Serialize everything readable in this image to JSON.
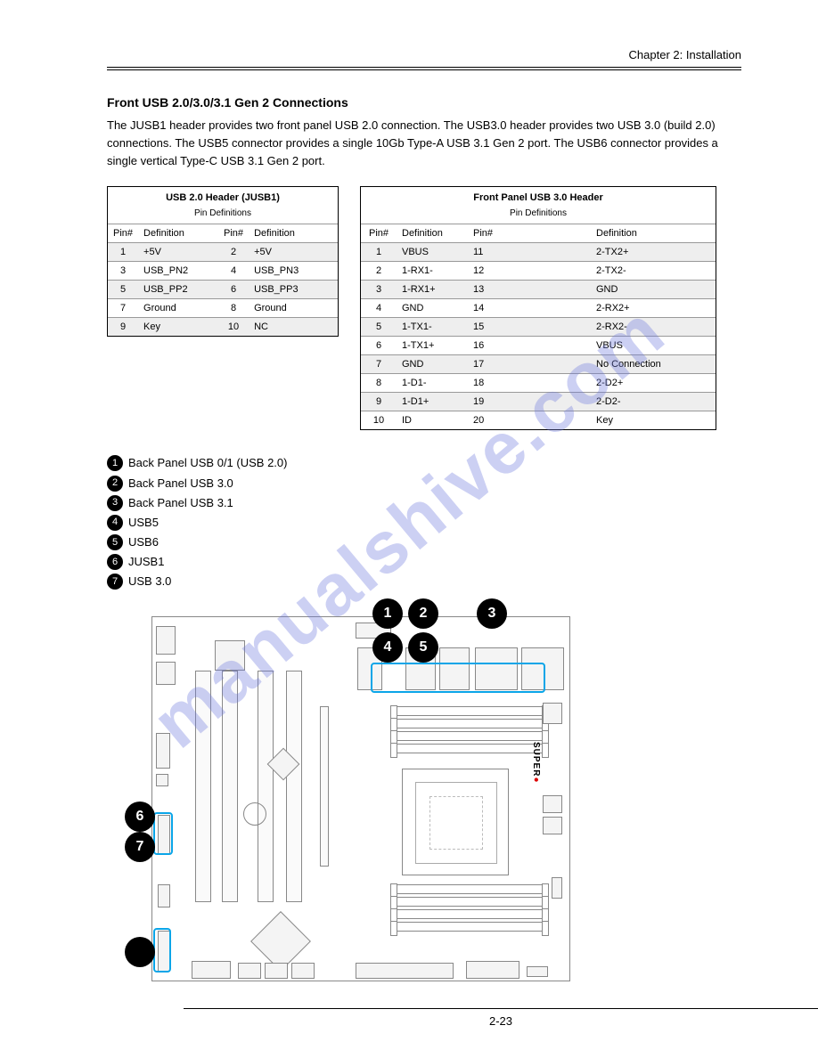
{
  "chapter_label": "Chapter 2: Installation",
  "section_title": "Front USB 2.0/3.0/3.1 Gen 2 Connections",
  "body_text": "The JUSB1 header provides two front panel USB 2.0 connection. The USB3.0 header provides two USB 3.0 (build 2.0) connections. The USB5 connector provides a single 10Gb Type-A USB 3.1 Gen 2 port. The USB6 connector provides a single vertical Type-C USB 3.1 Gen 2 port.",
  "table1": {
    "title": "USB 2.0 Header (JUSB1)",
    "subtitle": "Pin Definitions",
    "rows": [
      {
        "c1": "Pin#",
        "c2": "Definition",
        "c3": "Pin#",
        "c4": "Definition",
        "shade": false
      },
      {
        "c1": "1",
        "c2": "+5V",
        "c3": "2",
        "c4": "+5V",
        "shade": true
      },
      {
        "c1": "3",
        "c2": "USB_PN2",
        "c3": "4",
        "c4": "USB_PN3",
        "shade": false
      },
      {
        "c1": "5",
        "c2": "USB_PP2",
        "c3": "6",
        "c4": "USB_PP3",
        "shade": true
      },
      {
        "c1": "7",
        "c2": "Ground",
        "c3": "8",
        "c4": "Ground",
        "shade": false
      },
      {
        "c1": "9",
        "c2": "Key",
        "c3": "10",
        "c4": "NC",
        "shade": true
      }
    ]
  },
  "table2": {
    "title": "Front Panel USB 3.0 Header",
    "subtitle": "Pin Definitions",
    "rows": [
      {
        "c1": "Pin#",
        "c2": "Definition",
        "c3": "Pin#",
        "c4": "Definition",
        "shade": false
      },
      {
        "c1": "1",
        "c2": "VBUS",
        "c3": "11",
        "c4": "2-TX2+",
        "shade": true
      },
      {
        "c1": "2",
        "c2": "1-RX1-",
        "c3": "12",
        "c4": "2-TX2-",
        "shade": false
      },
      {
        "c1": "3",
        "c2": "1-RX1+",
        "c3": "13",
        "c4": "GND",
        "shade": true
      },
      {
        "c1": "4",
        "c2": "GND",
        "c3": "14",
        "c4": "2-RX2+",
        "shade": false
      },
      {
        "c1": "5",
        "c2": "1-TX1-",
        "c3": "15",
        "c4": "2-RX2-",
        "shade": true
      },
      {
        "c1": "6",
        "c2": "1-TX1+",
        "c3": "16",
        "c4": "VBUS",
        "shade": false
      },
      {
        "c1": "7",
        "c2": "GND",
        "c3": "17",
        "c4": "No Connection",
        "shade": true
      },
      {
        "c1": "8",
        "c2": "1-D1-",
        "c3": "18",
        "c4": "2-D2+",
        "shade": false
      },
      {
        "c1": "9",
        "c2": "1-D1+",
        "c3": "19",
        "c4": "2-D2-",
        "shade": true
      },
      {
        "c1": "10",
        "c2": "ID",
        "c3": "20",
        "c4": "Key",
        "shade": false
      }
    ]
  },
  "legend": [
    {
      "n": "1",
      "label": "Back Panel USB 0/1 (USB 2.0)"
    },
    {
      "n": "2",
      "label": "Back Panel USB 3.0"
    },
    {
      "n": "3",
      "label": "Back Panel USB 3.1"
    },
    {
      "n": "4",
      "label": "USB5"
    },
    {
      "n": "5",
      "label": "USB6"
    },
    {
      "n": "6",
      "label": "JUSB1"
    },
    {
      "n": "7",
      "label": "USB 3.0"
    }
  ],
  "watermark": "manualshive.com",
  "page_number": "2-23",
  "colors": {
    "highlight": "#0aa5e8",
    "marker_bg": "#000000",
    "marker_fg": "#ffffff",
    "shade": "#eeeeee"
  }
}
